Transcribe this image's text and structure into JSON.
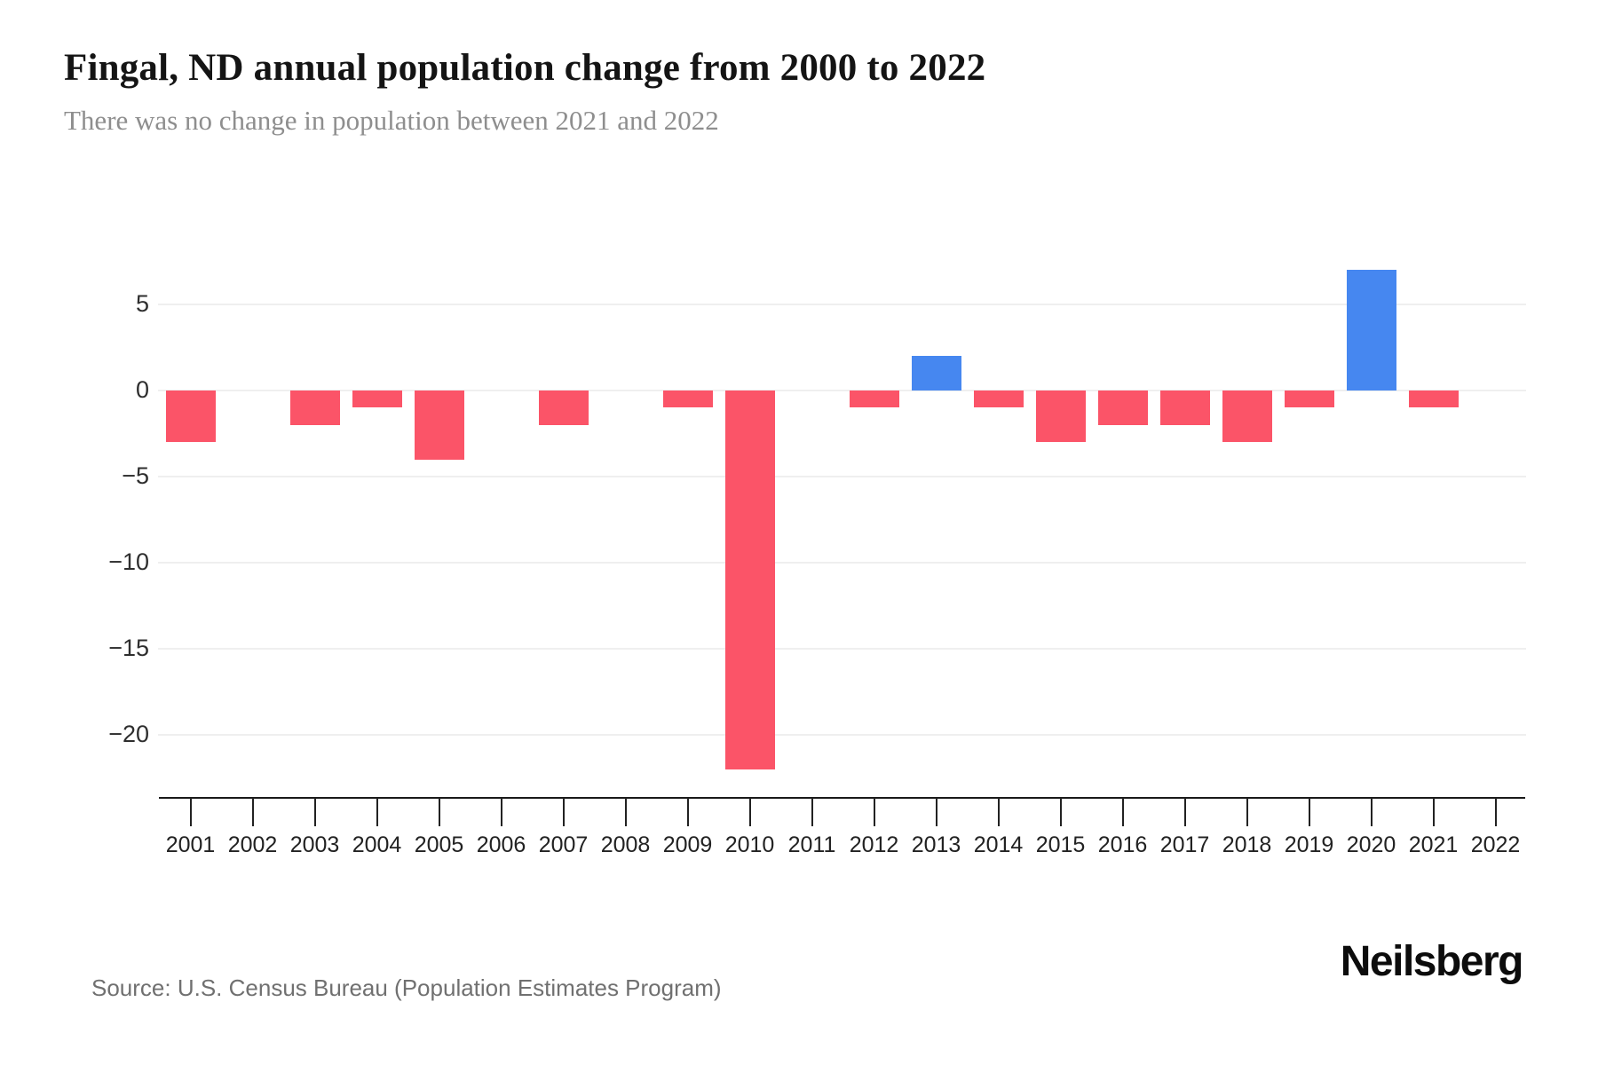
{
  "header": {
    "title": "Fingal, ND annual population change from 2000 to 2022",
    "subtitle": "There was no change in population between 2021 and 2022"
  },
  "chart_data": {
    "type": "bar",
    "title": "Fingal, ND annual population change from 2000 to 2022",
    "subtitle": "There was no change in population between 2021 and 2022",
    "categories": [
      "2001",
      "2002",
      "2003",
      "2004",
      "2005",
      "2006",
      "2007",
      "2008",
      "2009",
      "2010",
      "2011",
      "2012",
      "2013",
      "2014",
      "2015",
      "2016",
      "2017",
      "2018",
      "2019",
      "2020",
      "2021",
      "2022"
    ],
    "values": [
      -3,
      0,
      -2,
      -1,
      -4,
      0,
      -2,
      0,
      -1,
      -22,
      0,
      -1,
      2,
      -1,
      -3,
      -2,
      -2,
      -3,
      -1,
      7,
      -1,
      0
    ],
    "xlabel": "",
    "ylabel": "",
    "yticks": [
      5,
      0,
      -5,
      -10,
      -15,
      -20
    ],
    "ylim": [
      -24,
      8
    ],
    "grid": true,
    "legend_position": "none",
    "colors": {
      "positive_bar": "#4687F0",
      "negative_bar": "#FB5468",
      "gridline": "#EFEFEF",
      "axis_line": "#1A1A1A",
      "tick_label": "#2B2B2B"
    }
  },
  "footer": {
    "source": "Source: U.S. Census Bureau (Population Estimates Program)",
    "brand": "Neilsberg"
  }
}
